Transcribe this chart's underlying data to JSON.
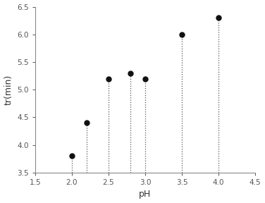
{
  "x": [
    2.0,
    2.2,
    2.5,
    2.8,
    3.0,
    3.5,
    4.0
  ],
  "y": [
    3.8,
    4.4,
    5.2,
    5.3,
    5.2,
    6.0,
    6.3
  ],
  "xlabel": "pH",
  "ylabel": "tr(min)",
  "xlim": [
    1.5,
    4.5
  ],
  "ylim": [
    3.5,
    6.5
  ],
  "xticks": [
    1.5,
    2.0,
    2.5,
    3.0,
    3.5,
    4.0,
    4.5
  ],
  "yticks": [
    3.5,
    4.0,
    4.5,
    5.0,
    5.5,
    6.0,
    6.5
  ],
  "marker_color": "#111111",
  "marker_size": 5,
  "line_color": "#555555",
  "tick_color": "#555555",
  "spine_color": "#888888",
  "label_fontsize": 9,
  "tick_fontsize": 7.5,
  "background_color": "#ffffff"
}
